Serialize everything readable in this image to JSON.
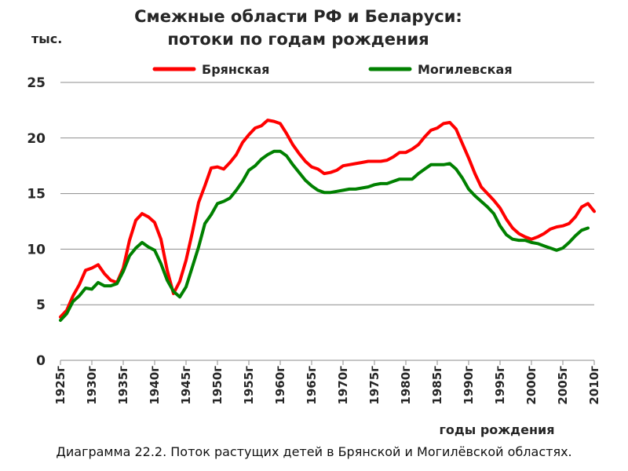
{
  "chart_data": {
    "type": "line",
    "title_line1": "Смежные области РФ и Беларуси:",
    "title_line2": "потоки по годам рождения",
    "ylabel": "тыс.",
    "xlabel": "годы рождения",
    "caption": "Диаграмма 22.2. Поток растущих детей в Брянской и Могилёвской областях.",
    "ylim": [
      0,
      25
    ],
    "yticks": [
      "0",
      "5",
      "10",
      "15",
      "20",
      "25"
    ],
    "xlim": [
      1925,
      2010
    ],
    "xticks": [
      "1925г",
      "1930г",
      "1935г",
      "1940г",
      "1945г",
      "1950г",
      "1955г",
      "1960г",
      "1965г",
      "1970г",
      "1975г",
      "1980г",
      "1985г",
      "1990г",
      "1995г",
      "2000г",
      "2005г",
      "2010г"
    ],
    "grid": true,
    "legend_position": "top",
    "series": [
      {
        "name": "Брянская",
        "color": "#ff0000",
        "x": [
          1925,
          1926,
          1927,
          1928,
          1929,
          1930,
          1931,
          1932,
          1933,
          1934,
          1935,
          1936,
          1937,
          1938,
          1939,
          1940,
          1941,
          1942,
          1943,
          1944,
          1945,
          1946,
          1947,
          1948,
          1949,
          1950,
          1951,
          1952,
          1953,
          1954,
          1955,
          1956,
          1957,
          1958,
          1959,
          1960,
          1961,
          1962,
          1963,
          1964,
          1965,
          1966,
          1967,
          1968,
          1969,
          1970,
          1971,
          1972,
          1973,
          1974,
          1975,
          1976,
          1977,
          1978,
          1979,
          1980,
          1981,
          1982,
          1983,
          1984,
          1985,
          1986,
          1987,
          1988,
          1989,
          1990,
          1991,
          1992,
          1993,
          1994,
          1995,
          1996,
          1997,
          1998,
          1999,
          2000,
          2001,
          2002,
          2003,
          2004,
          2005,
          2006,
          2007,
          2008,
          2009,
          2010
        ],
        "values": [
          3.9,
          4.5,
          5.8,
          6.8,
          8.1,
          8.3,
          8.6,
          7.8,
          7.2,
          7.0,
          8.3,
          10.8,
          12.6,
          13.2,
          12.9,
          12.4,
          10.9,
          8.1,
          6.0,
          7.1,
          9.0,
          11.5,
          14.2,
          15.7,
          17.3,
          17.4,
          17.2,
          17.8,
          18.5,
          19.6,
          20.3,
          20.9,
          21.1,
          21.6,
          21.5,
          21.3,
          20.4,
          19.4,
          18.6,
          17.9,
          17.4,
          17.2,
          16.8,
          16.9,
          17.1,
          17.5,
          17.6,
          17.7,
          17.8,
          17.9,
          17.9,
          17.9,
          18.0,
          18.3,
          18.7,
          18.7,
          19.0,
          19.4,
          20.1,
          20.7,
          20.9,
          21.3,
          21.4,
          20.8,
          19.5,
          18.2,
          16.8,
          15.6,
          15.0,
          14.4,
          13.7,
          12.7,
          11.9,
          11.4,
          11.1,
          10.9,
          11.1,
          11.4,
          11.8,
          12.0,
          12.1,
          12.3,
          12.9,
          13.8,
          14.1,
          13.4
        ]
      },
      {
        "name": "Могилевская",
        "color": "#008000",
        "x": [
          1925,
          1926,
          1927,
          1928,
          1929,
          1930,
          1931,
          1932,
          1933,
          1934,
          1935,
          1936,
          1937,
          1938,
          1939,
          1940,
          1941,
          1942,
          1943,
          1944,
          1945,
          1946,
          1947,
          1948,
          1949,
          1950,
          1951,
          1952,
          1953,
          1954,
          1955,
          1956,
          1957,
          1958,
          1959,
          1960,
          1961,
          1962,
          1963,
          1964,
          1965,
          1966,
          1967,
          1968,
          1969,
          1970,
          1971,
          1972,
          1973,
          1974,
          1975,
          1976,
          1977,
          1978,
          1979,
          1980,
          1981,
          1982,
          1983,
          1984,
          1985,
          1986,
          1987,
          1988,
          1989,
          1990,
          1991,
          1992,
          1993,
          1994,
          1995,
          1996,
          1997,
          1998,
          1999,
          2000,
          2001,
          2002,
          2003,
          2004,
          2005,
          2006,
          2007,
          2008,
          2009
        ],
        "values": [
          3.6,
          4.2,
          5.3,
          5.8,
          6.5,
          6.4,
          7.0,
          6.7,
          6.7,
          6.9,
          8.0,
          9.4,
          10.1,
          10.6,
          10.2,
          9.9,
          8.7,
          7.2,
          6.2,
          5.7,
          6.6,
          8.4,
          10.2,
          12.3,
          13.1,
          14.1,
          14.3,
          14.6,
          15.3,
          16.1,
          17.1,
          17.5,
          18.1,
          18.5,
          18.8,
          18.8,
          18.4,
          17.6,
          16.9,
          16.2,
          15.7,
          15.3,
          15.1,
          15.1,
          15.2,
          15.3,
          15.4,
          15.4,
          15.5,
          15.6,
          15.8,
          15.9,
          15.9,
          16.1,
          16.3,
          16.3,
          16.3,
          16.8,
          17.2,
          17.6,
          17.6,
          17.6,
          17.7,
          17.2,
          16.4,
          15.4,
          14.8,
          14.3,
          13.8,
          13.2,
          12.1,
          11.3,
          10.9,
          10.8,
          10.8,
          10.6,
          10.5,
          10.3,
          10.1,
          9.9,
          10.1,
          10.6,
          11.2,
          11.7,
          11.9
        ]
      }
    ]
  }
}
